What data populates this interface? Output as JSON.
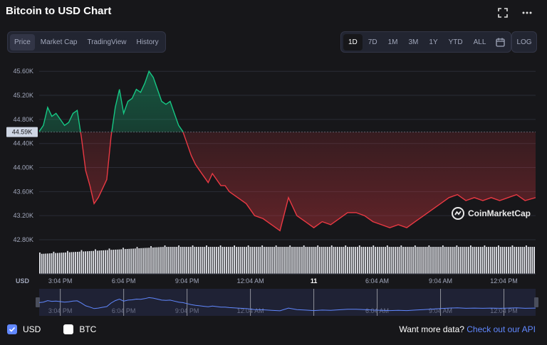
{
  "title": "Bitcoin to USD Chart",
  "tabs": [
    "Price",
    "Market Cap",
    "TradingView",
    "History"
  ],
  "active_tab": "Price",
  "ranges": [
    "1D",
    "7D",
    "1M",
    "3M",
    "1Y",
    "YTD",
    "ALL"
  ],
  "active_range": "1D",
  "log_label": "LOG",
  "brand": "CoinMarketCap",
  "currency_label": "USD",
  "legend": {
    "usd": "USD",
    "btc": "BTC"
  },
  "more": {
    "text": "Want more data?",
    "link": "Check out our API"
  },
  "icons": [
    "fullscreen-icon",
    "more-icon",
    "calendar-icon",
    "checkmark-icon",
    "coinmarketcap-logo-icon"
  ],
  "colors": {
    "up": "#16c784",
    "down": "#ea3943",
    "navigator": "#6188ff",
    "baseline_label_bg": "#cfd6e4"
  },
  "chart_data": {
    "type": "line",
    "ylabel": "USD",
    "y_ticks": [
      "45.60K",
      "45.20K",
      "44.80K",
      "44.40K",
      "44.00K",
      "43.60K",
      "43.20K",
      "42.80K"
    ],
    "y_tick_values": [
      45600,
      45200,
      44800,
      44400,
      44000,
      43600,
      43200,
      42800
    ],
    "ylim": [
      42800,
      45650
    ],
    "baseline": 44590,
    "baseline_label": "44.59K",
    "x_ticks": [
      "3:04 PM",
      "6:04 PM",
      "9:04 PM",
      "12:04 AM",
      "11",
      "6:04 AM",
      "9:04 AM",
      "12:04 PM"
    ],
    "x_tick_hours": [
      1,
      4,
      7,
      10,
      13,
      16,
      19,
      22
    ],
    "xlim": [
      0,
      23.5
    ],
    "x": [
      0,
      0.2,
      0.4,
      0.6,
      0.8,
      1.0,
      1.2,
      1.4,
      1.6,
      1.8,
      2.0,
      2.2,
      2.4,
      2.6,
      2.8,
      3.0,
      3.2,
      3.4,
      3.6,
      3.8,
      4.0,
      4.2,
      4.4,
      4.6,
      4.8,
      5.0,
      5.2,
      5.4,
      5.6,
      5.8,
      6.0,
      6.2,
      6.4,
      6.6,
      6.8,
      7.0,
      7.2,
      7.4,
      7.6,
      7.8,
      8.0,
      8.2,
      8.4,
      8.6,
      8.8,
      9.0,
      9.4,
      9.8,
      10.2,
      10.6,
      11.0,
      11.4,
      11.8,
      12.2,
      12.6,
      13.0,
      13.4,
      13.8,
      14.2,
      14.6,
      15.0,
      15.4,
      15.8,
      16.2,
      16.6,
      17.0,
      17.4,
      17.8,
      18.2,
      18.6,
      19.0,
      19.4,
      19.8,
      20.2,
      20.6,
      21.0,
      21.4,
      21.8,
      22.2,
      22.6,
      23.0,
      23.5
    ],
    "y": [
      44600,
      44700,
      45000,
      44850,
      44900,
      44800,
      44700,
      44750,
      44900,
      44950,
      44500,
      43950,
      43700,
      43400,
      43500,
      43650,
      43800,
      44500,
      45000,
      45300,
      44900,
      45100,
      45150,
      45300,
      45250,
      45400,
      45600,
      45500,
      45300,
      45100,
      45050,
      45100,
      44900,
      44700,
      44600,
      44400,
      44200,
      44050,
      43950,
      43850,
      43750,
      43900,
      43800,
      43700,
      43700,
      43600,
      43500,
      43400,
      43200,
      43150,
      43050,
      42950,
      43500,
      43200,
      43100,
      43000,
      43100,
      43050,
      43150,
      43250,
      43250,
      43200,
      43100,
      43050,
      43000,
      43050,
      43000,
      43100,
      43200,
      43300,
      43400,
      43500,
      43550,
      43450,
      43500,
      43450,
      43500,
      43450,
      43500,
      43550,
      43450,
      43500
    ],
    "volume_bar_count": 250,
    "series": [
      {
        "name": "USD",
        "color": "#16c784"
      }
    ]
  }
}
